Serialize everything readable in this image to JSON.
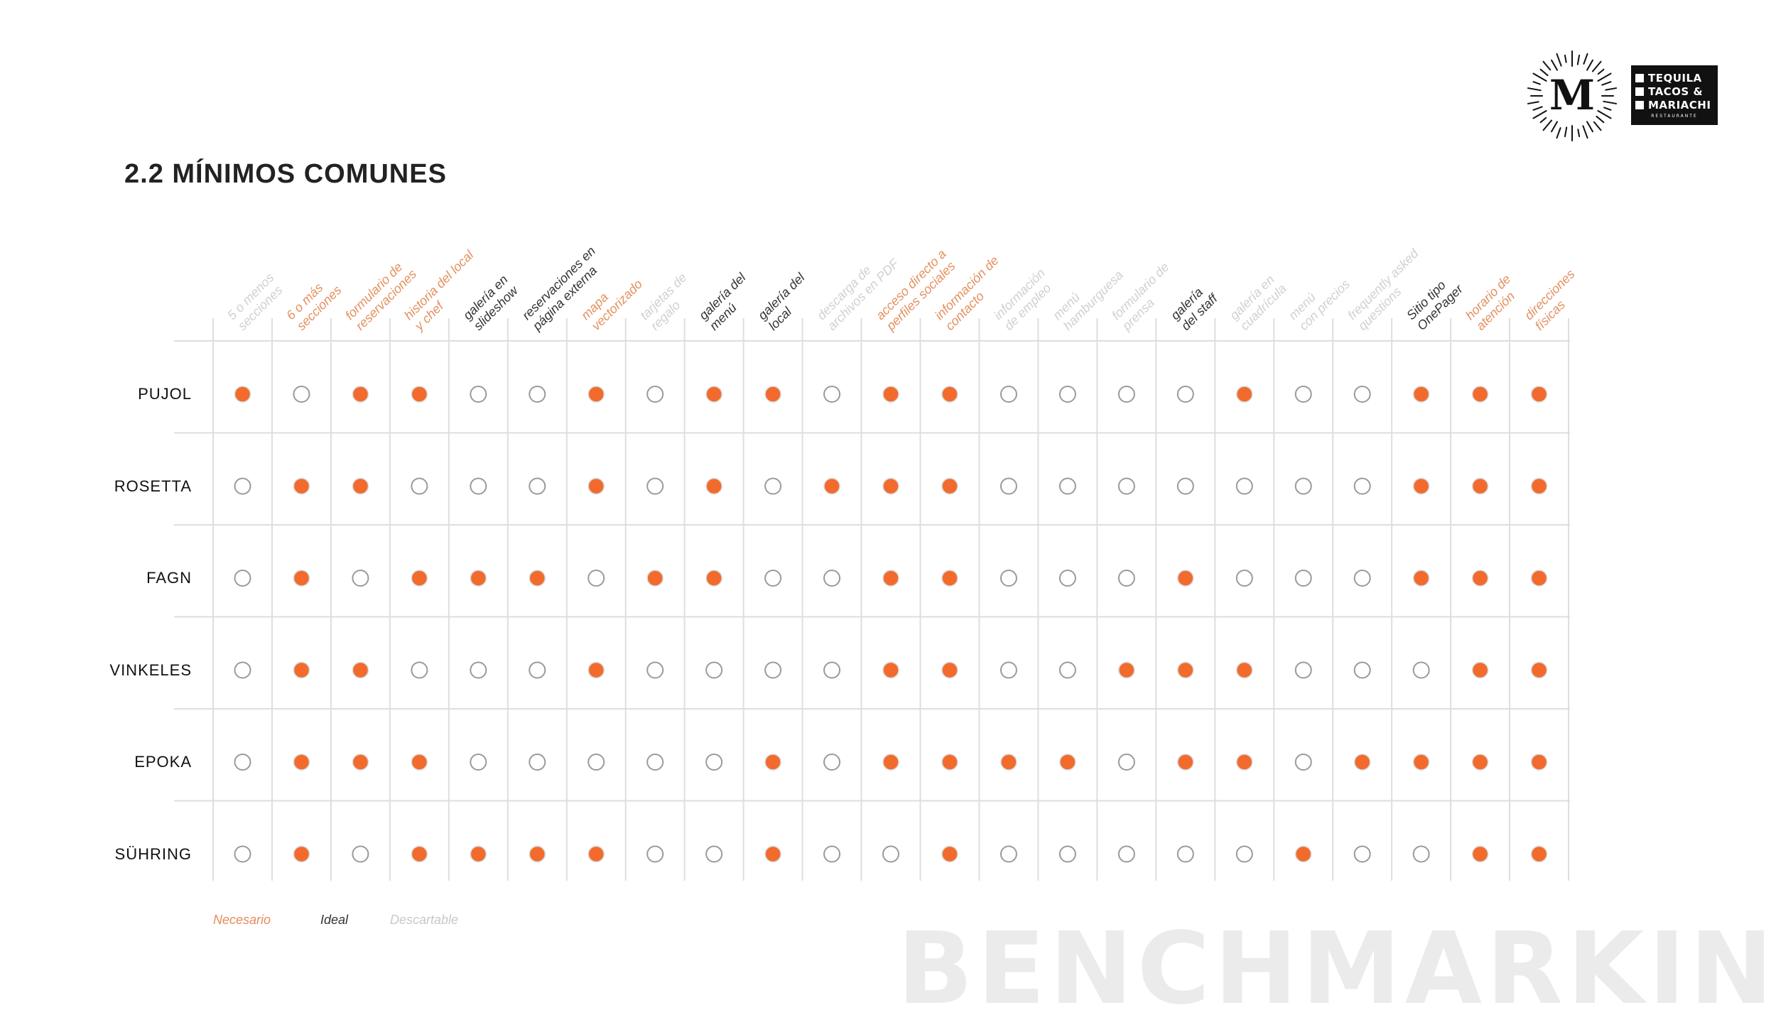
{
  "page": {
    "title": "2.2 MÍNIMOS COMUNES",
    "watermark": "BENCHMARKING",
    "logos": [
      {
        "name": "M",
        "mark": "M"
      },
      {
        "name": "Tequila Tacos & Mariachi",
        "lines": [
          "TEQUILA",
          "TACOS &",
          "MARIACHI"
        ],
        "sub": "RESTAURANTE"
      }
    ]
  },
  "colors": {
    "necesario": "#f26b2d",
    "ideal": "#333333",
    "descartable": "#d0d0d0",
    "empty_stroke": "#9a9a9a",
    "grid": "#dedede",
    "watermark": "#ebebeb"
  },
  "legend": [
    {
      "label": "Necesario",
      "color": "#e48b5c"
    },
    {
      "label": "Ideal",
      "color": "#333333"
    },
    {
      "label": "Descartable",
      "color": "#c8c8c8"
    }
  ],
  "chart_data": {
    "type": "table",
    "columns": [
      {
        "label": [
          "5 o menos",
          "secciones"
        ],
        "category": "descartable"
      },
      {
        "label": [
          "6 o más",
          "secciones"
        ],
        "category": "necesario"
      },
      {
        "label": [
          "formulario de",
          "reservaciones"
        ],
        "category": "necesario"
      },
      {
        "label": [
          "historia del local",
          "y chef"
        ],
        "category": "necesario"
      },
      {
        "label": [
          "galería en",
          "slideshow"
        ],
        "category": "ideal"
      },
      {
        "label": [
          "reservaciones en",
          "página externa"
        ],
        "category": "ideal"
      },
      {
        "label": [
          "mapa",
          "vectorizado"
        ],
        "category": "necesario"
      },
      {
        "label": [
          "tarjetas de",
          "regalo"
        ],
        "category": "descartable"
      },
      {
        "label": [
          "galería del",
          "menú"
        ],
        "category": "ideal"
      },
      {
        "label": [
          "galería del",
          "local"
        ],
        "category": "ideal"
      },
      {
        "label": [
          "descarga de",
          "archivos en PDF"
        ],
        "category": "descartable"
      },
      {
        "label": [
          "acceso directo a",
          "perfiles sociales"
        ],
        "category": "necesario"
      },
      {
        "label": [
          "información de",
          "contacto"
        ],
        "category": "necesario"
      },
      {
        "label": [
          "información",
          "de empleo"
        ],
        "category": "descartable"
      },
      {
        "label": [
          "menú",
          "hamburguesa"
        ],
        "category": "descartable"
      },
      {
        "label": [
          "formulario de",
          "prensa"
        ],
        "category": "descartable"
      },
      {
        "label": [
          "galería",
          "del staff"
        ],
        "category": "ideal"
      },
      {
        "label": [
          "galería en",
          "cuadrícula"
        ],
        "category": "descartable"
      },
      {
        "label": [
          "menú",
          "con precios"
        ],
        "category": "descartable"
      },
      {
        "label": [
          "frequently asked",
          "questions"
        ],
        "category": "descartable"
      },
      {
        "label": [
          "Sitio tipo",
          "OnePager"
        ],
        "category": "ideal"
      },
      {
        "label": [
          "horario de",
          "atención"
        ],
        "category": "necesario"
      },
      {
        "label": [
          "direcciones",
          "físicas"
        ],
        "category": "necesario"
      }
    ],
    "rows": [
      {
        "name": "PUJOL",
        "values": [
          1,
          0,
          1,
          1,
          0,
          0,
          1,
          0,
          1,
          1,
          0,
          1,
          1,
          0,
          0,
          0,
          0,
          1,
          0,
          0,
          1,
          1,
          1
        ]
      },
      {
        "name": "ROSETTA",
        "values": [
          0,
          1,
          1,
          0,
          0,
          0,
          1,
          0,
          1,
          0,
          1,
          1,
          1,
          0,
          0,
          0,
          0,
          0,
          0,
          0,
          1,
          1,
          1
        ]
      },
      {
        "name": "FAGN",
        "values": [
          0,
          1,
          0,
          1,
          1,
          1,
          0,
          1,
          1,
          0,
          0,
          1,
          1,
          0,
          0,
          0,
          1,
          0,
          0,
          0,
          1,
          1,
          1
        ]
      },
      {
        "name": "VINKELES",
        "values": [
          0,
          1,
          1,
          0,
          0,
          0,
          1,
          0,
          0,
          0,
          0,
          1,
          1,
          0,
          0,
          1,
          1,
          1,
          0,
          0,
          0,
          1,
          1
        ]
      },
      {
        "name": "EPOKA",
        "values": [
          0,
          1,
          1,
          1,
          0,
          0,
          0,
          0,
          0,
          1,
          0,
          1,
          1,
          1,
          1,
          0,
          1,
          1,
          0,
          1,
          1,
          1,
          1
        ]
      },
      {
        "name": "SÜHRING",
        "values": [
          0,
          1,
          0,
          1,
          1,
          1,
          1,
          0,
          0,
          1,
          0,
          0,
          1,
          0,
          0,
          0,
          0,
          0,
          1,
          0,
          0,
          1,
          1
        ]
      }
    ]
  }
}
